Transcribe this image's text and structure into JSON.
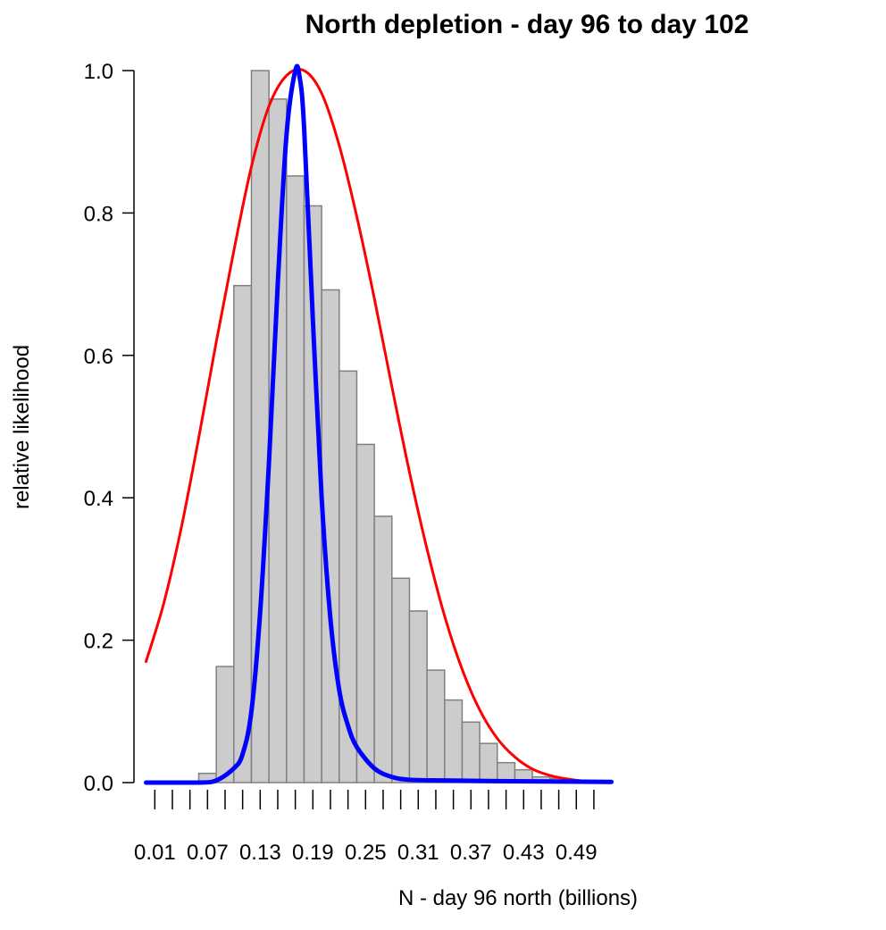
{
  "chart_data": {
    "type": "bar",
    "title": "North depletion - day 96 to day 102",
    "xlabel": "N - day 96 north  (billions)",
    "ylabel": "relative likelihood",
    "xlim": [
      0.0,
      0.53
    ],
    "ylim": [
      0.0,
      1.0
    ],
    "y_ticks": [
      "0.0",
      "0.2",
      "0.4",
      "0.6",
      "0.8",
      "1.0"
    ],
    "x_tick_labels": [
      "0.01",
      "0.07",
      "0.13",
      "0.19",
      "0.25",
      "0.31",
      "0.37",
      "0.43",
      "0.49"
    ],
    "x_minor_ticks": [
      0.01,
      0.03,
      0.05,
      0.07,
      0.09,
      0.11,
      0.13,
      0.15,
      0.17,
      0.19,
      0.21,
      0.23,
      0.25,
      0.27,
      0.29,
      0.31,
      0.33,
      0.35,
      0.37,
      0.39,
      0.41,
      0.43,
      0.45,
      0.47,
      0.49,
      0.51
    ],
    "grid": false,
    "legend": "none",
    "histogram": {
      "bin_width": 0.02,
      "bins": [
        {
          "x0": 0.06,
          "value": 0.013
        },
        {
          "x0": 0.08,
          "value": 0.163
        },
        {
          "x0": 0.1,
          "value": 0.698
        },
        {
          "x0": 0.12,
          "value": 1.0
        },
        {
          "x0": 0.14,
          "value": 0.96
        },
        {
          "x0": 0.16,
          "value": 0.852
        },
        {
          "x0": 0.18,
          "value": 0.81
        },
        {
          "x0": 0.2,
          "value": 0.692
        },
        {
          "x0": 0.22,
          "value": 0.578
        },
        {
          "x0": 0.24,
          "value": 0.475
        },
        {
          "x0": 0.26,
          "value": 0.374
        },
        {
          "x0": 0.28,
          "value": 0.287
        },
        {
          "x0": 0.3,
          "value": 0.241
        },
        {
          "x0": 0.32,
          "value": 0.158
        },
        {
          "x0": 0.34,
          "value": 0.116
        },
        {
          "x0": 0.36,
          "value": 0.085
        },
        {
          "x0": 0.38,
          "value": 0.055
        },
        {
          "x0": 0.4,
          "value": 0.028
        },
        {
          "x0": 0.42,
          "value": 0.018
        },
        {
          "x0": 0.44,
          "value": 0.008
        },
        {
          "x0": 0.46,
          "value": 0.006
        },
        {
          "x0": 0.48,
          "value": 0.003
        },
        {
          "x0": 0.5,
          "value": 0.002
        }
      ],
      "fill": "#cccccc",
      "stroke": "#808080"
    },
    "series": [
      {
        "color": "#ff0000",
        "x": [
          0.0,
          0.02,
          0.04,
          0.06,
          0.08,
          0.1,
          0.12,
          0.14,
          0.16,
          0.18,
          0.2,
          0.22,
          0.24,
          0.26,
          0.28,
          0.3,
          0.32,
          0.34,
          0.36,
          0.38,
          0.4,
          0.42,
          0.44,
          0.46,
          0.48,
          0.5,
          0.52
        ],
        "values": [
          0.17,
          0.251,
          0.357,
          0.484,
          0.619,
          0.747,
          0.865,
          0.95,
          0.993,
          1.0,
          0.968,
          0.895,
          0.795,
          0.68,
          0.556,
          0.436,
          0.328,
          0.234,
          0.159,
          0.102,
          0.062,
          0.036,
          0.019,
          0.01,
          0.005,
          0.002,
          0.001
        ]
      },
      {
        "color": "#0000ff",
        "x": [
          0.0,
          0.06,
          0.08,
          0.1,
          0.11,
          0.12,
          0.13,
          0.14,
          0.15,
          0.16,
          0.17,
          0.175,
          0.18,
          0.19,
          0.2,
          0.21,
          0.22,
          0.23,
          0.24,
          0.26,
          0.28,
          0.3,
          0.34,
          0.4,
          0.53
        ],
        "values": [
          0.0,
          0.0,
          0.003,
          0.02,
          0.04,
          0.1,
          0.24,
          0.45,
          0.7,
          0.91,
          1.0,
          0.99,
          0.92,
          0.65,
          0.4,
          0.23,
          0.13,
          0.08,
          0.05,
          0.02,
          0.008,
          0.004,
          0.003,
          0.002,
          0.001
        ]
      }
    ]
  }
}
